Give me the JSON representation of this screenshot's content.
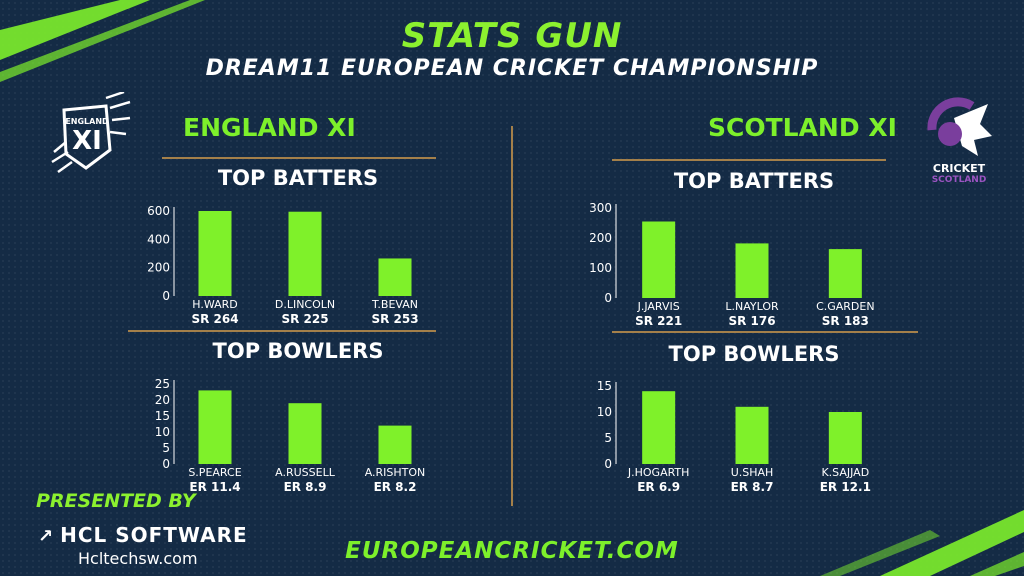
{
  "header": {
    "title": "STATS GUN",
    "subtitle": "DREAM11 EUROPEAN CRICKET CHAMPIONSHIP"
  },
  "teams": {
    "left": {
      "name": "ENGLAND XI",
      "logo_text": "ENGLAND",
      "logo_mark": "XI"
    },
    "right": {
      "name": "SCOTLAND XI",
      "logo_text_1": "CRICKET",
      "logo_text_2": "SCOTLAND"
    }
  },
  "sections": {
    "left_batters": "TOP BATTERS",
    "left_bowlers": "TOP BOWLERS",
    "right_batters": "TOP BATTERS",
    "right_bowlers": "TOP BOWLERS"
  },
  "footer": {
    "presented_by": "PRESENTED BY",
    "sponsor": "HCL SOFTWARE",
    "sponsor_site": "Hcltechsw.com",
    "site": "EUROPEANCRICKET.COM"
  },
  "colors": {
    "bar": "#7ff12a",
    "accent": "#8cf12f",
    "rule": "#a4804a",
    "background": "#142b45"
  },
  "chart_data": [
    {
      "id": "eng_bat",
      "type": "bar",
      "categories": [
        "H.WARD",
        "D.LINCOLN",
        "T.BEVAN"
      ],
      "values": [
        600,
        595,
        265
      ],
      "sublabels": [
        "SR 264",
        "SR 225",
        "SR 253"
      ],
      "yticks": [
        0,
        200,
        400,
        600
      ],
      "ylim": [
        0,
        600
      ]
    },
    {
      "id": "eng_bowl",
      "type": "bar",
      "categories": [
        "S.PEARCE",
        "A.RUSSELL",
        "A.RISHTON"
      ],
      "values": [
        23,
        19,
        12
      ],
      "sublabels": [
        "ER 11.4",
        "ER 8.9",
        "ER 8.2"
      ],
      "yticks": [
        0,
        5,
        10,
        15,
        20,
        25
      ],
      "ylim": [
        0,
        25
      ]
    },
    {
      "id": "sco_bat",
      "type": "bar",
      "categories": [
        "J.JARVIS",
        "L.NAYLOR",
        "C.GARDEN"
      ],
      "values": [
        255,
        182,
        163
      ],
      "sublabels": [
        "SR 221",
        "SR 176",
        "SR 183"
      ],
      "yticks": [
        0,
        100,
        200,
        300
      ],
      "ylim": [
        0,
        300
      ]
    },
    {
      "id": "sco_bowl",
      "type": "bar",
      "categories": [
        "J.HOGARTH",
        "U.SHAH",
        "K.SAJJAD"
      ],
      "values": [
        14,
        11,
        10
      ],
      "sublabels": [
        "ER 6.9",
        "ER 8.7",
        "ER 12.1"
      ],
      "yticks": [
        0,
        5,
        10,
        15
      ],
      "ylim": [
        0,
        15
      ]
    }
  ]
}
